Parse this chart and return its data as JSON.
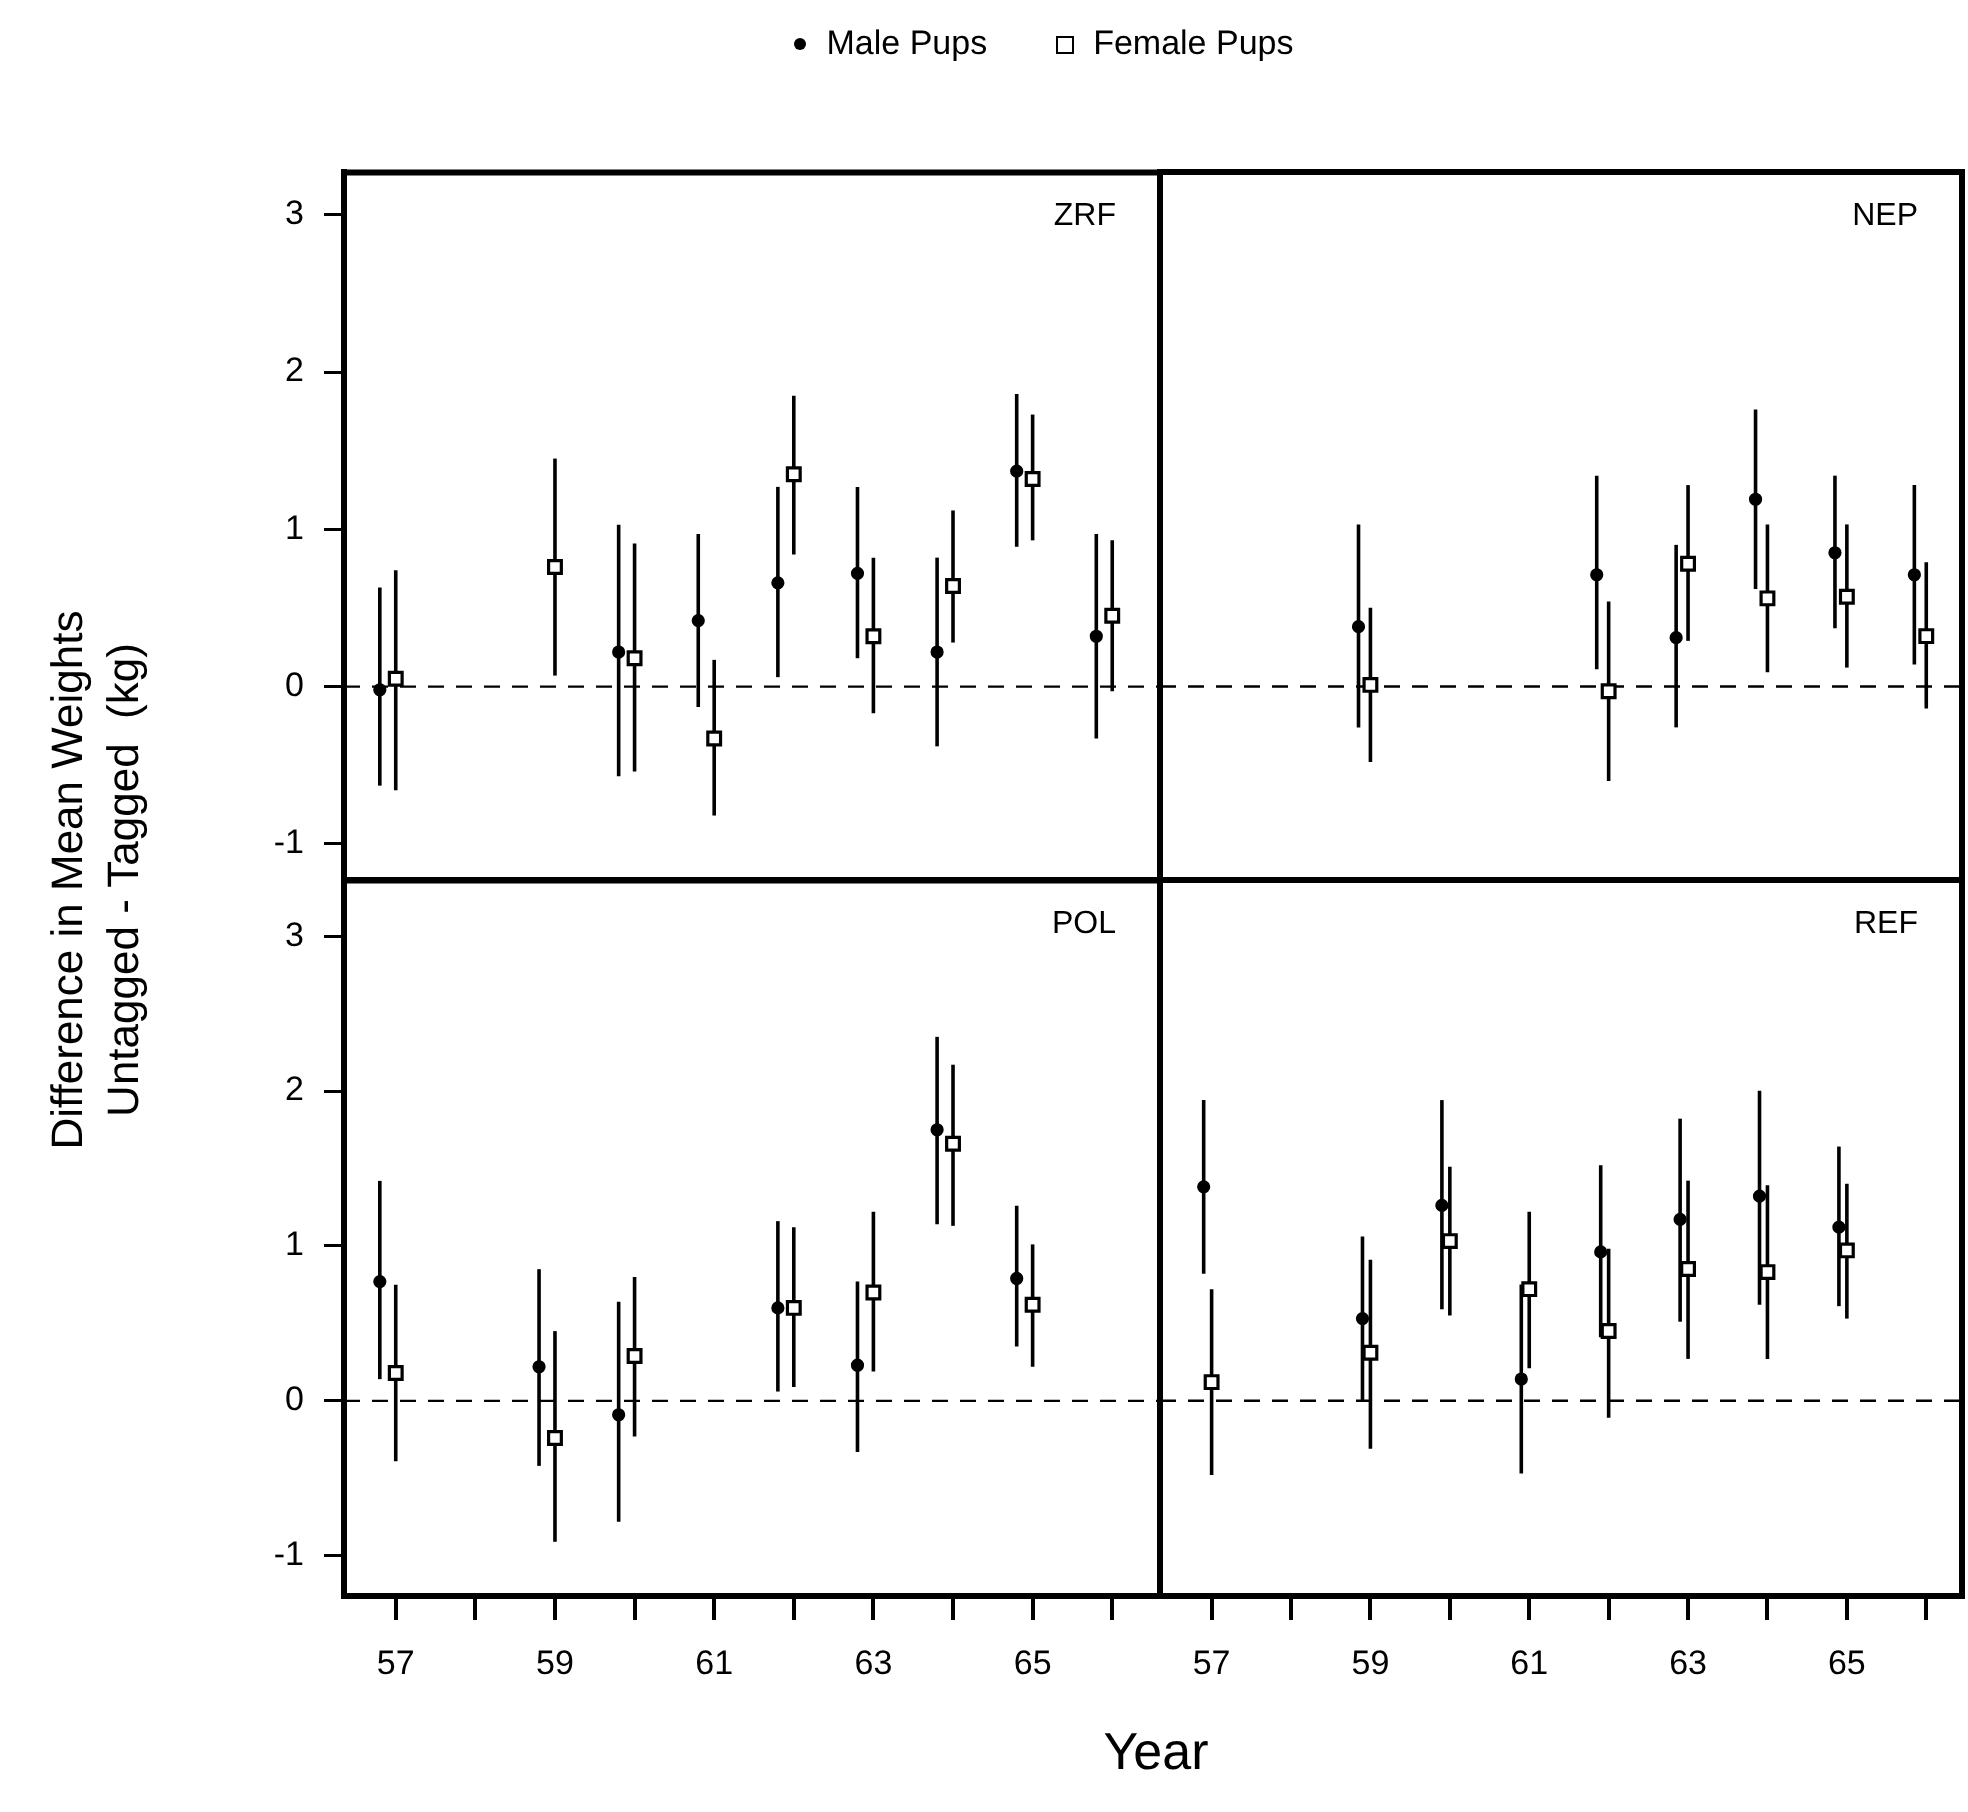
{
  "chart_data": [
    {
      "type": "scatter",
      "ylabel": "Difference in Mean Weights\nUntagged - Tagged  (kg)",
      "legend": "top",
      "tick_labels": "y",
      "annotations": [
        "ZRF"
      ],
      "xlim": [
        56.35,
        66.6
      ],
      "ylim": [
        -1.23,
        3.27
      ],
      "yticks": [
        -1,
        0,
        1,
        2,
        3
      ],
      "ref_lines": [
        {
          "axis": "y",
          "value": 0,
          "line_style": "dashed"
        }
      ],
      "series": [
        {
          "name": "Male Pups",
          "color": "#000000",
          "marker": "circle",
          "x": [
            56.8,
            59.8,
            60.8,
            61.8,
            62.8,
            63.8,
            64.8,
            65.8
          ],
          "values": [
            -0.02,
            0.22,
            0.42,
            0.66,
            0.72,
            0.22,
            1.37,
            0.32
          ],
          "errors": [
            [
              -0.63,
              0.63
            ],
            [
              -0.57,
              1.03
            ],
            [
              -0.13,
              0.97
            ],
            [
              0.06,
              1.27
            ],
            [
              0.18,
              1.27
            ],
            [
              -0.38,
              0.82
            ],
            [
              0.89,
              1.86
            ],
            [
              -0.33,
              0.97
            ]
          ]
        },
        {
          "name": "Female Pups",
          "color": "#000000",
          "marker": "square",
          "x": [
            57,
            59,
            60,
            61,
            62,
            63,
            64,
            65,
            66
          ],
          "values": [
            0.05,
            0.76,
            0.18,
            -0.33,
            1.35,
            0.32,
            0.64,
            1.32,
            0.45
          ],
          "errors": [
            [
              -0.66,
              0.74
            ],
            [
              0.07,
              1.45
            ],
            [
              -0.54,
              0.91
            ],
            [
              -0.82,
              0.17
            ],
            [
              0.84,
              1.85
            ],
            [
              -0.17,
              0.82
            ],
            [
              0.28,
              1.12
            ],
            [
              0.93,
              1.73
            ],
            [
              -0.03,
              0.93
            ]
          ]
        }
      ]
    },
    {
      "type": "scatter",
      "tick_labels": false,
      "annotations": [
        "NEP"
      ],
      "xlim": [
        56.35,
        66.45
      ],
      "ylim": [
        -1.23,
        3.27
      ],
      "yticks": [
        -1,
        0,
        1,
        2,
        3
      ],
      "ref_lines": [
        {
          "axis": "y",
          "value": 0,
          "line_style": "dashed"
        }
      ],
      "series": [
        {
          "color": "#000000",
          "marker": "circle",
          "x": [
            58.85,
            61.85,
            62.85,
            63.85,
            64.85,
            65.85
          ],
          "values": [
            0.38,
            0.71,
            0.31,
            1.19,
            0.85,
            0.71
          ],
          "errors": [
            [
              -0.26,
              1.03
            ],
            [
              0.11,
              1.34
            ],
            [
              -0.26,
              0.9
            ],
            [
              0.62,
              1.76
            ],
            [
              0.37,
              1.34
            ],
            [
              0.14,
              1.28
            ]
          ]
        },
        {
          "color": "#000000",
          "marker": "square",
          "x": [
            59,
            62,
            63,
            64,
            65,
            66
          ],
          "values": [
            0.01,
            -0.03,
            0.78,
            0.56,
            0.57,
            0.32
          ],
          "errors": [
            [
              -0.48,
              0.5
            ],
            [
              -0.6,
              0.54
            ],
            [
              0.29,
              1.28
            ],
            [
              0.09,
              1.03
            ],
            [
              0.12,
              1.03
            ],
            [
              -0.14,
              0.79
            ]
          ]
        }
      ]
    },
    {
      "type": "scatter",
      "xlabel": "Year",
      "annotations": [
        "POL"
      ],
      "xlim": [
        56.35,
        66.6
      ],
      "ylim": [
        -1.26,
        3.36
      ],
      "yticks": [
        -1,
        0,
        1,
        2,
        3
      ],
      "xticks": [
        57,
        {
          "value": 58,
          "label": null
        },
        59,
        {
          "value": 60,
          "label": null
        },
        61,
        {
          "value": 62,
          "label": null
        },
        63,
        {
          "value": 64,
          "label": null
        },
        65,
        {
          "value": 66,
          "label": null
        }
      ],
      "ref_lines": [
        {
          "axis": "y",
          "value": 0,
          "line_style": "dashed"
        }
      ],
      "series": [
        {
          "color": "#000000",
          "marker": "circle",
          "x": [
            56.8,
            58.8,
            59.8,
            61.8,
            62.8,
            63.8,
            64.8
          ],
          "values": [
            0.77,
            0.22,
            -0.09,
            0.6,
            0.23,
            1.75,
            0.79
          ],
          "errors": [
            [
              0.14,
              1.42
            ],
            [
              -0.42,
              0.85
            ],
            [
              -0.78,
              0.64
            ],
            [
              0.06,
              1.16
            ],
            [
              -0.33,
              0.77
            ],
            [
              1.14,
              2.35
            ],
            [
              0.35,
              1.26
            ]
          ]
        },
        {
          "color": "#000000",
          "marker": "square",
          "x": [
            57,
            59,
            60,
            62,
            63,
            64,
            65
          ],
          "values": [
            0.18,
            -0.24,
            0.29,
            0.6,
            0.7,
            1.66,
            0.62
          ],
          "errors": [
            [
              -0.39,
              0.75
            ],
            [
              -0.91,
              0.45
            ],
            [
              -0.23,
              0.8
            ],
            [
              0.09,
              1.12
            ],
            [
              0.19,
              1.22
            ],
            [
              1.13,
              2.17
            ],
            [
              0.22,
              1.01
            ]
          ]
        }
      ]
    },
    {
      "type": "scatter",
      "tick_labels": "x",
      "annotations": [
        "REF"
      ],
      "xlim": [
        56.35,
        66.45
      ],
      "ylim": [
        -1.26,
        3.36
      ],
      "yticks": [
        -1,
        0,
        1,
        2,
        3
      ],
      "xticks": [
        57,
        {
          "value": 58,
          "label": null
        },
        59,
        {
          "value": 60,
          "label": null
        },
        61,
        {
          "value": 62,
          "label": null
        },
        63,
        {
          "value": 64,
          "label": null
        },
        65,
        {
          "value": 66,
          "label": null
        }
      ],
      "ref_lines": [
        {
          "axis": "y",
          "value": 0,
          "line_style": "dashed"
        }
      ],
      "series": [
        {
          "color": "#000000",
          "marker": "circle",
          "x": [
            56.9,
            58.9,
            59.9,
            60.9,
            61.9,
            62.9,
            63.9,
            64.9
          ],
          "values": [
            1.38,
            0.53,
            1.26,
            0.14,
            0.96,
            1.17,
            1.32,
            1.12
          ],
          "errors": [
            [
              0.82,
              1.94
            ],
            [
              0.0,
              1.06
            ],
            [
              0.59,
              1.94
            ],
            [
              -0.47,
              0.75
            ],
            [
              0.41,
              1.52
            ],
            [
              0.51,
              1.82
            ],
            [
              0.62,
              2.0
            ],
            [
              0.61,
              1.64
            ]
          ]
        },
        {
          "color": "#000000",
          "marker": "square",
          "x": [
            57,
            59,
            60,
            61,
            62,
            63,
            64,
            65
          ],
          "values": [
            0.12,
            0.31,
            1.03,
            0.72,
            0.45,
            0.85,
            0.83,
            0.97
          ],
          "errors": [
            [
              -0.48,
              0.72
            ],
            [
              -0.31,
              0.91
            ],
            [
              0.55,
              1.51
            ],
            [
              0.21,
              1.22
            ],
            [
              -0.11,
              0.98
            ],
            [
              0.27,
              1.42
            ],
            [
              0.27,
              1.39
            ],
            [
              0.53,
              1.4
            ]
          ]
        }
      ]
    }
  ]
}
